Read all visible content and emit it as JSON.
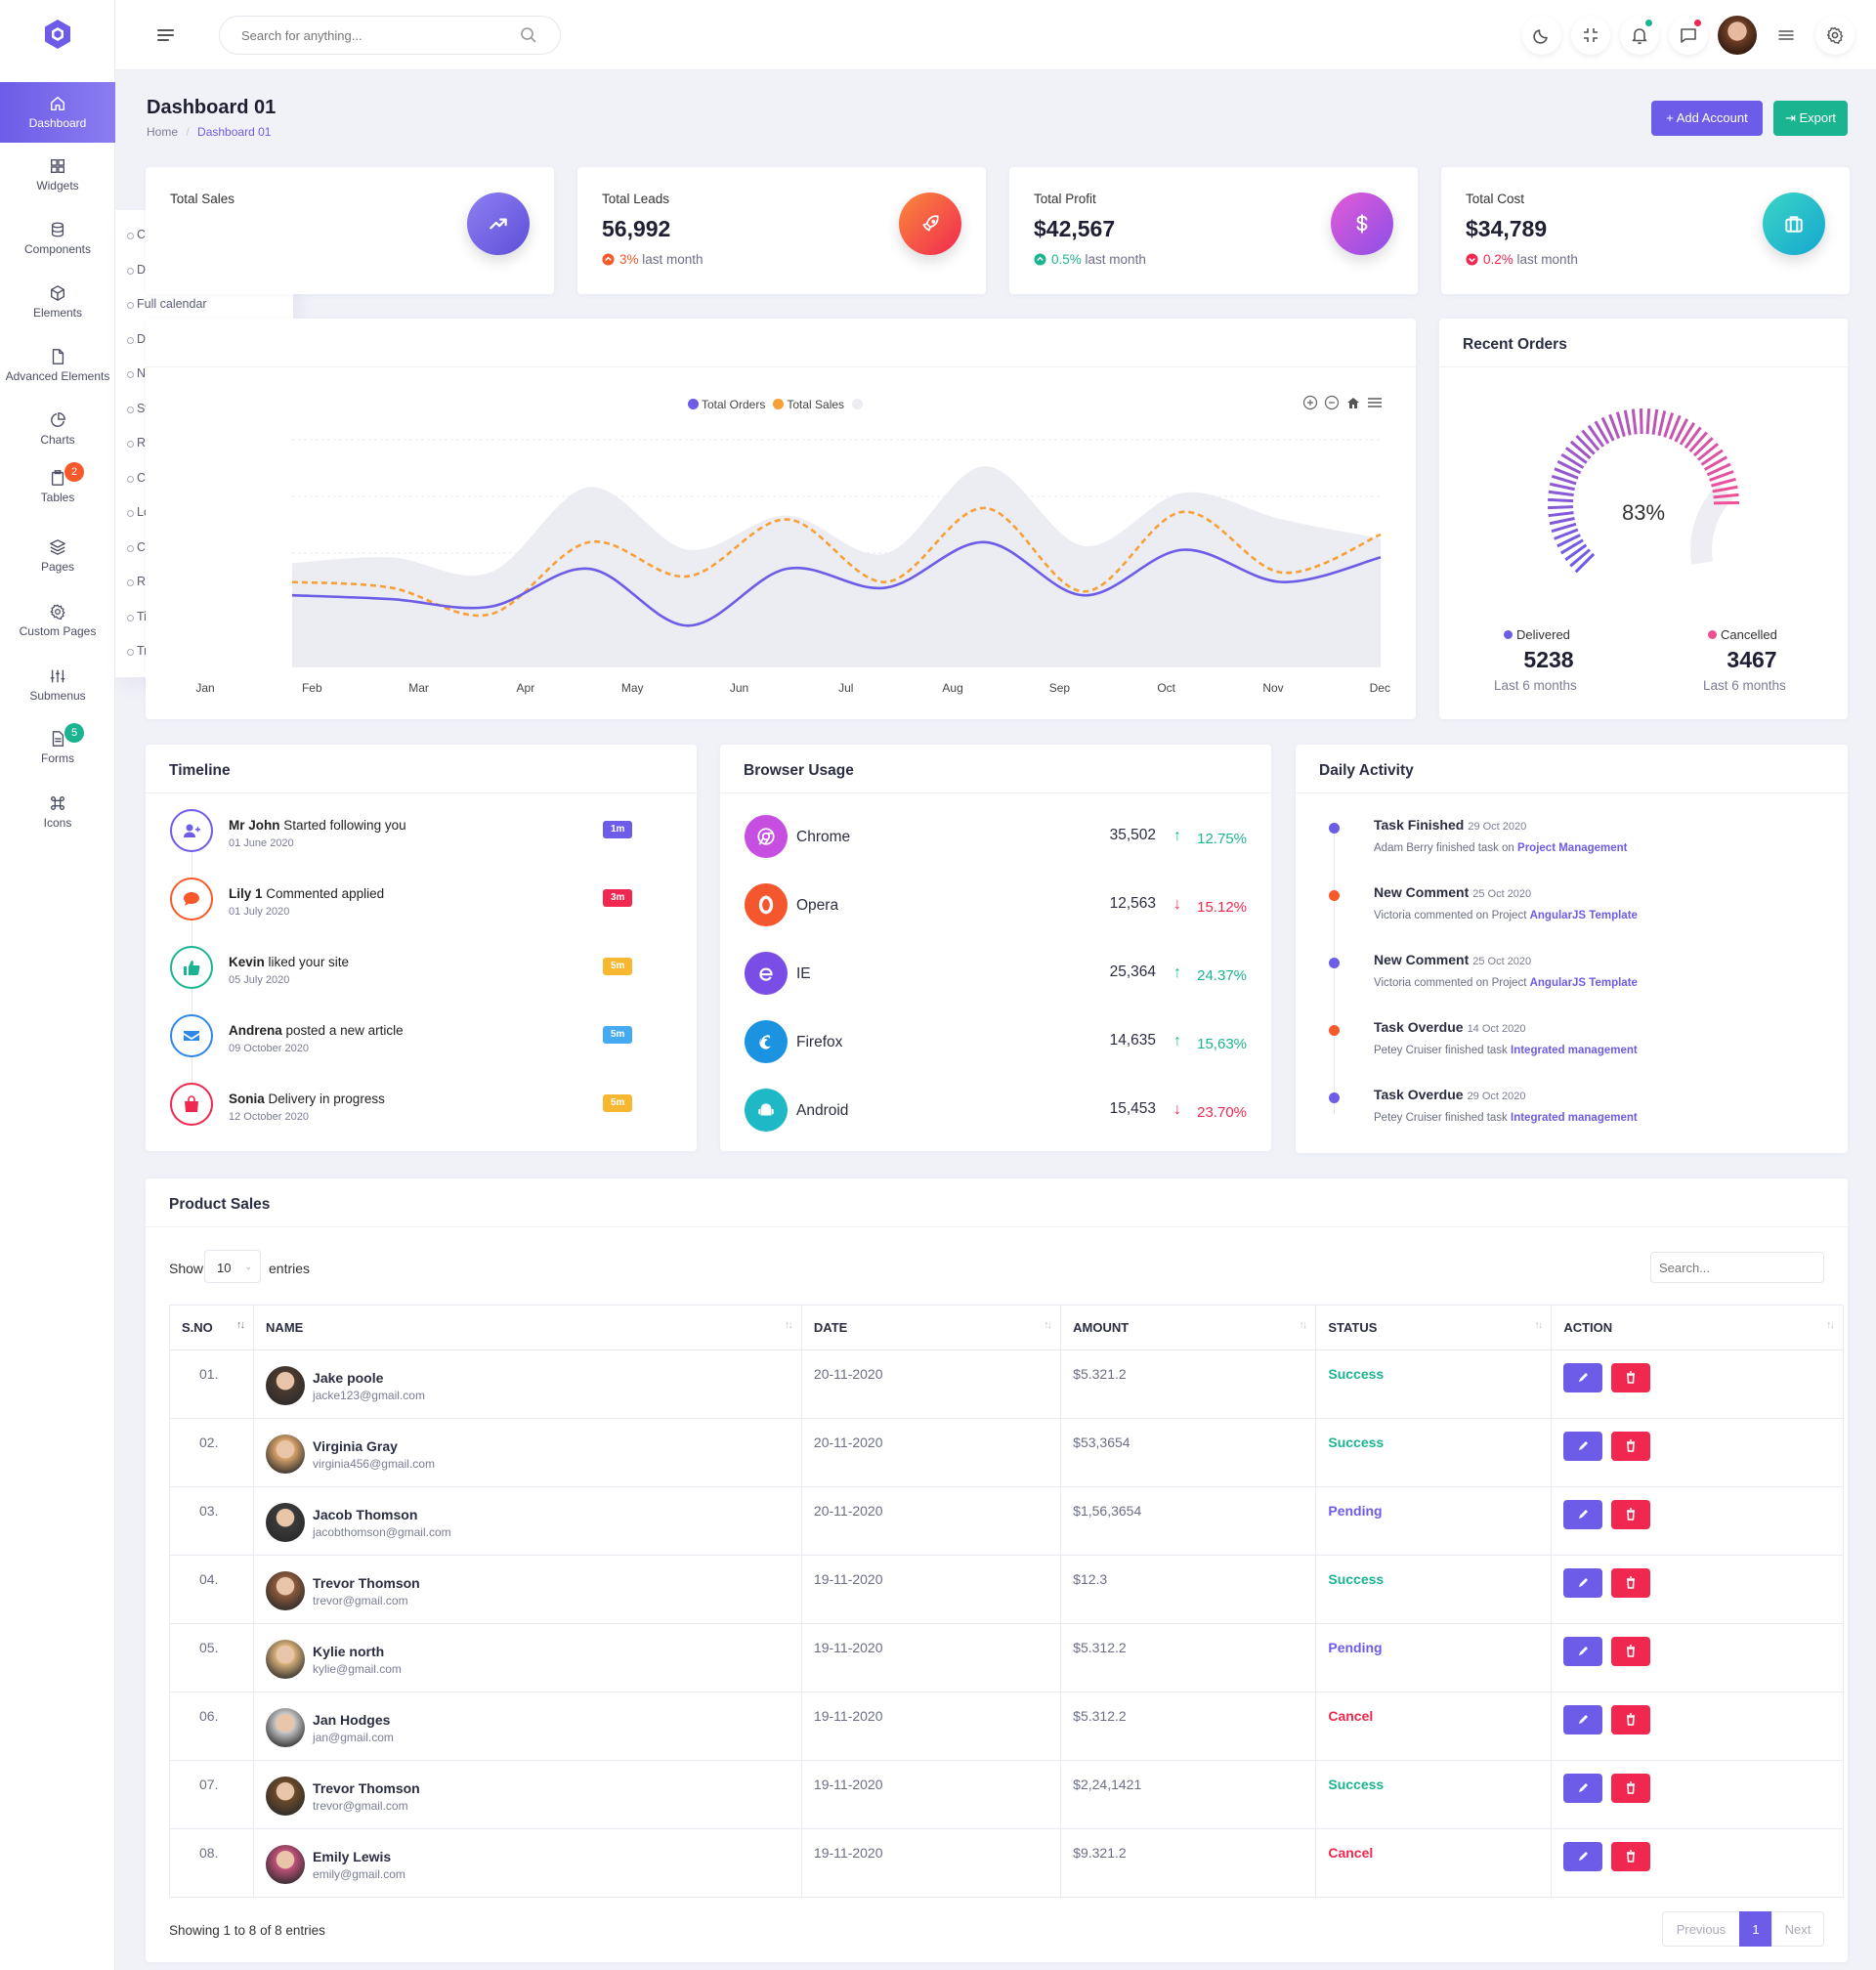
{
  "search": {
    "placeholder": "Search for anything..."
  },
  "sidebar": {
    "items": [
      {
        "label": "Dashboard",
        "icon": "home-icon",
        "active": true
      },
      {
        "label": "Widgets",
        "icon": "grid-icon"
      },
      {
        "label": "Components",
        "icon": "database-icon"
      },
      {
        "label": "Elements",
        "icon": "box-icon"
      },
      {
        "label": "Advanced Elements",
        "icon": "file-icon"
      },
      {
        "label": "Charts",
        "icon": "pie-chart-icon"
      },
      {
        "label": "Tables",
        "icon": "clipboard-icon",
        "badge": "2",
        "badge_color": "#f7592a"
      },
      {
        "label": "Pages",
        "icon": "layers-icon"
      },
      {
        "label": "Custom Pages",
        "icon": "settings-icon"
      },
      {
        "label": "Submenus",
        "icon": "sliders-icon"
      },
      {
        "label": "Forms",
        "icon": "form-icon",
        "badge": "5",
        "badge_color": "#1bb491"
      },
      {
        "label": "Icons",
        "icon": "command-icon"
      }
    ],
    "submenu": [
      "Cards design",
      "Default calendar",
      "Full calendar",
      "Default Chat",
      "Notifications",
      "Sweet alerts",
      "Range slider",
      "Content Scroll bar",
      "Loaders",
      "Counters",
      "Rating",
      "Timeline",
      "Treeview"
    ]
  },
  "header": {
    "title": "Dashboard 01",
    "breadcrumb_home": "Home",
    "breadcrumb_sep": "/",
    "breadcrumb_current": "Dashboard 01",
    "add_account": "+ Add Account",
    "export": "Export"
  },
  "stats": [
    {
      "label": "Total Sales",
      "color": "#6c5ce7",
      "icon": "trending-up-icon"
    },
    {
      "label": "Total Leads",
      "value": "56,992",
      "pct": "3%",
      "suffix": "last month",
      "color": "#f7592a",
      "trend": "up",
      "icon": "rocket-icon"
    },
    {
      "label": "Total Profit",
      "value": "$42,567",
      "pct": "0.5%",
      "suffix": "last month",
      "color": "#b24ee5",
      "trend": "up",
      "icon": "dollar-icon"
    },
    {
      "label": "Total Cost",
      "value": "$34,789",
      "pct": "0.2%",
      "suffix": "last month",
      "color": "#1fb8c6",
      "trend": "down",
      "icon": "briefcase-icon"
    }
  ],
  "chart_data": {
    "type": "line",
    "title": "",
    "categories": [
      "Jan",
      "Feb",
      "Mar",
      "Apr",
      "May",
      "Jun",
      "Jul",
      "Aug",
      "Sep",
      "Oct",
      "Nov",
      "Dec"
    ],
    "series": [
      {
        "name": "Total Orders",
        "color": "#6c5ce7",
        "values": [
          38,
          36,
          32,
          52,
          22,
          52,
          42,
          66,
          38,
          62,
          45,
          58
        ]
      },
      {
        "name": "Total Sales",
        "color": "#f7a035",
        "values": [
          45,
          42,
          28,
          66,
          48,
          78,
          45,
          84,
          40,
          82,
          50,
          70
        ]
      },
      {
        "name": "",
        "color": "#ececf3",
        "values": [
          55,
          58,
          50,
          95,
          62,
          80,
          60,
          106,
          64,
          92,
          78,
          68
        ]
      }
    ],
    "ylim": [
      0,
      120
    ]
  },
  "recent_orders": {
    "title": "Recent Orders",
    "percent": "83%",
    "delivered_label": "Delivered",
    "delivered_value": "5238",
    "delivered_sub": "Last 6 months",
    "cancelled_label": "Cancelled",
    "cancelled_value": "3467",
    "cancelled_sub": "Last 6 months"
  },
  "timeline": {
    "title": "Timeline",
    "items": [
      {
        "name": "Mr John",
        "text": "Started following you",
        "date": "01 June 2020",
        "badge": "1m",
        "badge_color": "#6c5ce7",
        "color": "#6c5ce7",
        "icon": "user-plus-icon"
      },
      {
        "name": "Lily 1",
        "text": "Commented applied",
        "date": "01 July 2020",
        "badge": "3m",
        "badge_color": "#f0284f",
        "color": "#f7592a",
        "icon": "chat-icon"
      },
      {
        "name": "Kevin",
        "text": "liked your site",
        "date": "05 July 2020",
        "badge": "5m",
        "badge_color": "#f7b731",
        "color": "#1bb491",
        "icon": "thumbs-up-icon"
      },
      {
        "name": "Andrena",
        "text": "posted a new article",
        "date": "09 October 2020",
        "badge": "5m",
        "badge_color": "#45aaf2",
        "color": "#2e88e6",
        "icon": "mail-icon"
      },
      {
        "name": "Sonia",
        "text": "Delivery in progress",
        "date": "12 October 2020",
        "badge": "5m",
        "badge_color": "#f7b731",
        "color": "#f0284f",
        "icon": "shopping-bag-icon"
      }
    ]
  },
  "browser": {
    "title": "Browser Usage",
    "items": [
      {
        "name": "Chrome",
        "value": "35,502",
        "pct": "12.75%",
        "trend": "up",
        "color": "#c64ee0",
        "icon": "chrome-icon"
      },
      {
        "name": "Opera",
        "value": "12,563",
        "pct": "15.12%",
        "trend": "down",
        "color": "#f4572e",
        "icon": "opera-icon"
      },
      {
        "name": "IE",
        "value": "25,364",
        "pct": "24.37%",
        "trend": "up",
        "color": "#7a4de6",
        "icon": "ie-icon"
      },
      {
        "name": "Firefox",
        "value": "14,635",
        "pct": "15,63%",
        "trend": "up",
        "color": "#1b93e0",
        "icon": "firefox-icon"
      },
      {
        "name": "Android",
        "value": "15,453",
        "pct": "23.70%",
        "trend": "down",
        "color": "#1fb8c6",
        "icon": "android-icon"
      }
    ]
  },
  "activity": {
    "title": "Daily Activity",
    "items": [
      {
        "title": "Task Finished",
        "date": "29 Oct 2020",
        "desc": "Adam Berry finished task on",
        "link": "Project Management",
        "color": "#6c5ce7"
      },
      {
        "title": "New Comment",
        "date": "25 Oct 2020",
        "desc": "Victoria commented on Project",
        "link": "AngularJS Template",
        "color": "#f7592a"
      },
      {
        "title": "New Comment",
        "date": "25 Oct 2020",
        "desc": "Victoria commented on Project",
        "link": "AngularJS Template",
        "color": "#6c5ce7"
      },
      {
        "title": "Task Overdue",
        "date": "14 Oct 2020",
        "desc": "Petey Cruiser finished task",
        "link": "Integrated management",
        "color": "#f7592a"
      },
      {
        "title": "Task Overdue",
        "date": "29 Oct 2020",
        "desc": "Petey Cruiser finished task",
        "link": "Integrated management",
        "color": "#6c5ce7"
      }
    ]
  },
  "products": {
    "title": "Product Sales",
    "show": "Show",
    "entries_count": "10",
    "entries": "entries",
    "search_placeholder": "Search...",
    "columns": [
      "S.NO",
      "NAME",
      "DATE",
      "AMOUNT",
      "STATUS",
      "ACTION"
    ],
    "rows": [
      {
        "sno": "01.",
        "name": "Jake poole",
        "email": "jacke123@gmail.com",
        "date": "20-11-2020",
        "amount": "$5.321.2",
        "status": "Success"
      },
      {
        "sno": "02.",
        "name": "Virginia Gray",
        "email": "virginia456@gmail.com",
        "date": "20-11-2020",
        "amount": "$53,3654",
        "status": "Success"
      },
      {
        "sno": "03.",
        "name": "Jacob Thomson",
        "email": "jacobthomson@gmail.com",
        "date": "20-11-2020",
        "amount": "$1,56,3654",
        "status": "Pending"
      },
      {
        "sno": "04.",
        "name": "Trevor Thomson",
        "email": "trevor@gmail.com",
        "date": "19-11-2020",
        "amount": "$12.3",
        "status": "Success"
      },
      {
        "sno": "05.",
        "name": "Kylie north",
        "email": "kylie@gmail.com",
        "date": "19-11-2020",
        "amount": "$5.312.2",
        "status": "Pending"
      },
      {
        "sno": "06.",
        "name": "Jan Hodges",
        "email": "jan@gmail.com",
        "date": "19-11-2020",
        "amount": "$5.312.2",
        "status": "Cancel"
      },
      {
        "sno": "07.",
        "name": "Trevor Thomson",
        "email": "trevor@gmail.com",
        "date": "19-11-2020",
        "amount": "$2,24,1421",
        "status": "Success"
      },
      {
        "sno": "08.",
        "name": "Emily Lewis",
        "email": "emily@gmail.com",
        "date": "19-11-2020",
        "amount": "$9.321.2",
        "status": "Cancel"
      }
    ],
    "status_colors": {
      "Success": "#1bb491",
      "Pending": "#6c5ce7",
      "Cancel": "#f0284f"
    },
    "footer": "Showing 1 to 8 of 8 entries",
    "prev": "Previous",
    "page": "1",
    "next": "Next"
  }
}
